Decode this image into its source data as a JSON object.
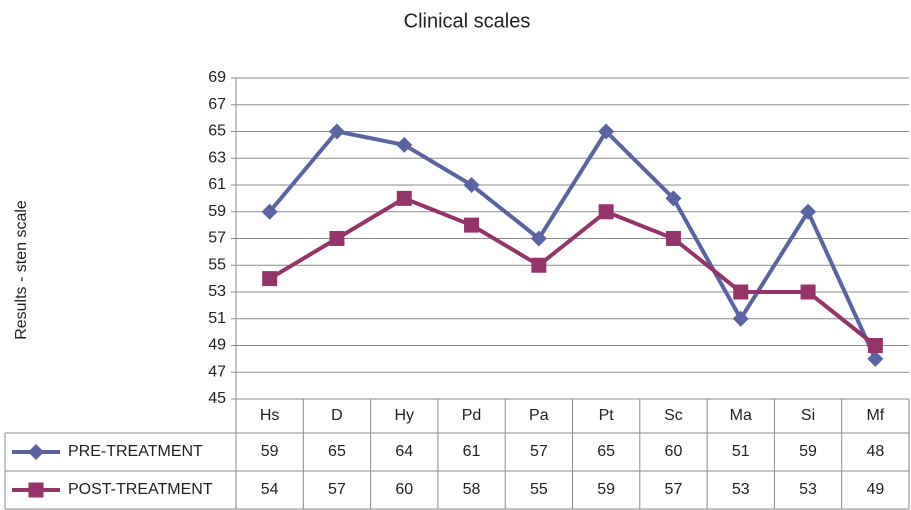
{
  "chart_data": {
    "type": "line",
    "title": "Clinical scales",
    "y_label": "Results - sten scale",
    "categories": [
      "Hs",
      "D",
      "Hy",
      "Pd",
      "Pa",
      "Pt",
      "Sc",
      "Ma",
      "Si",
      "Mf"
    ],
    "series": [
      {
        "name": "PRE-TREATMENT",
        "color": "#5a64a3",
        "marker": "diamond",
        "values": [
          59,
          65,
          64,
          61,
          57,
          65,
          60,
          51,
          59,
          48
        ]
      },
      {
        "name": "POST-TREATMENT",
        "color": "#943469",
        "marker": "square",
        "values": [
          54,
          57,
          60,
          58,
          55,
          59,
          57,
          53,
          53,
          49
        ]
      }
    ],
    "ylim": [
      45,
      69
    ],
    "yticks": [
      45,
      47,
      49,
      51,
      53,
      55,
      57,
      59,
      61,
      63,
      65,
      67,
      69
    ],
    "grid": true,
    "data_table": true
  }
}
